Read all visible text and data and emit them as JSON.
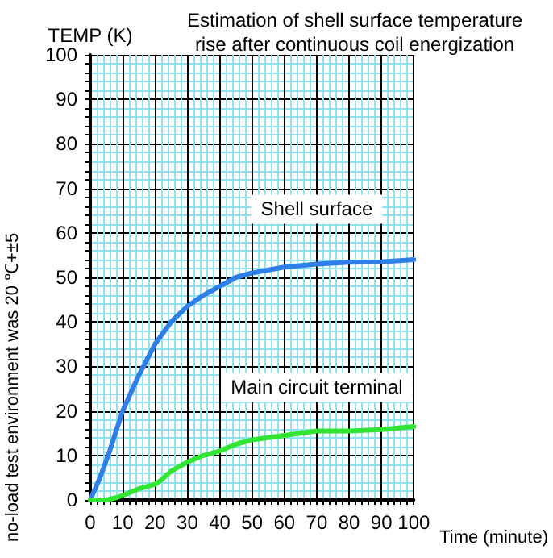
{
  "chart_data": {
    "type": "line",
    "title": "Estimation of shell surface temperature\nrise after continuous coil energization",
    "xlabel": "Time (minute)",
    "ylabel": "TEMP (K)",
    "annotations": [
      "no-load test environment was 20 ℃+±5"
    ],
    "x": [
      0,
      3,
      6,
      10,
      15,
      20,
      25,
      30,
      35,
      40,
      45,
      50,
      60,
      70,
      80,
      90,
      100
    ],
    "series": [
      {
        "name": "Shell surface",
        "color": "#2f7fe8",
        "values": [
          0,
          5,
          11,
          20,
          28,
          35,
          40,
          43.5,
          46,
          48,
          50,
          51,
          52.3,
          53,
          53.4,
          53.5,
          54
        ]
      },
      {
        "name": "Main circuit terminal",
        "color": "#33e533",
        "x": [
          0,
          5,
          8,
          10,
          15,
          20,
          22,
          25,
          30,
          35,
          40,
          45,
          50,
          60,
          70,
          80,
          90,
          100
        ],
        "values": [
          0,
          0,
          0.5,
          1,
          2.5,
          3.5,
          4.5,
          6.5,
          8.5,
          10,
          11,
          12.5,
          13.5,
          14.5,
          15.5,
          15.5,
          15.8,
          16.5
        ]
      }
    ],
    "xlim": [
      0,
      100
    ],
    "ylim": [
      0,
      100
    ],
    "xticks": [
      0,
      {
        "value": 2,
        "label": null
      },
      {
        "value": 4,
        "label": null
      },
      {
        "value": 6,
        "label": null
      },
      {
        "value": 8,
        "label": null
      },
      10,
      {
        "value": 12,
        "label": null
      },
      {
        "value": 14,
        "label": null
      },
      {
        "value": 16,
        "label": null
      },
      {
        "value": 18,
        "label": null
      },
      20,
      {
        "value": 22,
        "label": null
      },
      {
        "value": 24,
        "label": null
      },
      {
        "value": 26,
        "label": null
      },
      {
        "value": 28,
        "label": null
      },
      30,
      {
        "value": 32,
        "label": null
      },
      {
        "value": 34,
        "label": null
      },
      {
        "value": 36,
        "label": null
      },
      {
        "value": 38,
        "label": null
      },
      40,
      {
        "value": 42,
        "label": null
      },
      {
        "value": 44,
        "label": null
      },
      {
        "value": 46,
        "label": null
      },
      {
        "value": 48,
        "label": null
      },
      50,
      {
        "value": 52,
        "label": null
      },
      {
        "value": 54,
        "label": null
      },
      {
        "value": 56,
        "label": null
      },
      {
        "value": 58,
        "label": null
      },
      60,
      {
        "value": 62,
        "label": null
      },
      {
        "value": 64,
        "label": null
      },
      {
        "value": 66,
        "label": null
      },
      {
        "value": 68,
        "label": null
      },
      70,
      {
        "value": 72,
        "label": null
      },
      {
        "value": 74,
        "label": null
      },
      {
        "value": 76,
        "label": null
      },
      {
        "value": 78,
        "label": null
      },
      80,
      {
        "value": 82,
        "label": null
      },
      {
        "value": 84,
        "label": null
      },
      {
        "value": 86,
        "label": null
      },
      {
        "value": 88,
        "label": null
      },
      90,
      {
        "value": 92,
        "label": null
      },
      {
        "value": 94,
        "label": null
      },
      {
        "value": 96,
        "label": null
      },
      {
        "value": 98,
        "label": null
      },
      100
    ],
    "yticks": [
      0,
      {
        "value": 2,
        "label": null
      },
      {
        "value": 4,
        "label": null
      },
      {
        "value": 6,
        "label": null
      },
      {
        "value": 8,
        "label": null
      },
      10,
      {
        "value": 12,
        "label": null
      },
      {
        "value": 14,
        "label": null
      },
      {
        "value": 16,
        "label": null
      },
      {
        "value": 18,
        "label": null
      },
      20,
      {
        "value": 22,
        "label": null
      },
      {
        "value": 24,
        "label": null
      },
      {
        "value": 26,
        "label": null
      },
      {
        "value": 28,
        "label": null
      },
      30,
      {
        "value": 32,
        "label": null
      },
      {
        "value": 34,
        "label": null
      },
      {
        "value": 36,
        "label": null
      },
      {
        "value": 38,
        "label": null
      },
      40,
      {
        "value": 42,
        "label": null
      },
      {
        "value": 44,
        "label": null
      },
      {
        "value": 46,
        "label": null
      },
      {
        "value": 48,
        "label": null
      },
      50,
      {
        "value": 52,
        "label": null
      },
      {
        "value": 54,
        "label": null
      },
      {
        "value": 56,
        "label": null
      },
      {
        "value": 58,
        "label": null
      },
      60,
      {
        "value": 62,
        "label": null
      },
      {
        "value": 64,
        "label": null
      },
      {
        "value": 66,
        "label": null
      },
      {
        "value": 68,
        "label": null
      },
      70,
      {
        "value": 72,
        "label": null
      },
      {
        "value": 74,
        "label": null
      },
      {
        "value": 76,
        "label": null
      },
      {
        "value": 78,
        "label": null
      },
      80,
      {
        "value": 82,
        "label": null
      },
      {
        "value": 84,
        "label": null
      },
      {
        "value": 86,
        "label": null
      },
      {
        "value": 88,
        "label": null
      },
      90,
      {
        "value": 92,
        "label": null
      },
      {
        "value": 94,
        "label": null
      },
      {
        "value": 96,
        "label": null
      },
      {
        "value": 98,
        "label": null
      },
      100
    ],
    "grid": true,
    "legend": false,
    "marker": "none",
    "line_style": "solid"
  }
}
